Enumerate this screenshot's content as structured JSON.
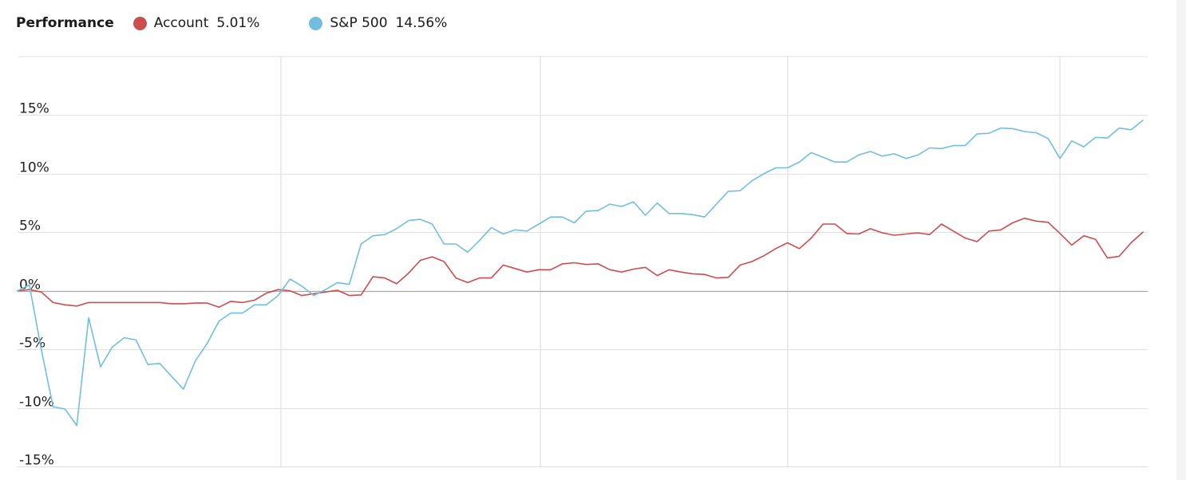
{
  "legend": {
    "title": "Performance",
    "series": [
      {
        "name": "Account",
        "value": "5.01%",
        "color": "#cc4d4f"
      },
      {
        "name": "S&P 500",
        "value": "14.56%",
        "color": "#72bedf"
      }
    ]
  },
  "chart_data": {
    "type": "line",
    "title": "Performance",
    "xlabel": "",
    "ylabel": "",
    "yticks": [
      -15,
      -10,
      -5,
      0,
      5,
      10,
      15
    ],
    "ytick_labels": [
      "-15%",
      "-10%",
      "-5%",
      "0%",
      "5%",
      "10%",
      "15%"
    ],
    "ylim": [
      -15,
      20
    ],
    "x_count": 96,
    "grid": true,
    "legend_position": "top-left",
    "series": [
      {
        "name": "Account",
        "color": "#cc4d4f",
        "values": [
          0,
          0.1,
          -0.1,
          -1.0,
          -1.2,
          -1.3,
          -1.0,
          -1.0,
          -1.0,
          -1.0,
          -1.0,
          -1.0,
          -1.0,
          -1.1,
          -1.1,
          -1.05,
          -1.05,
          -1.4,
          -0.9,
          -1.0,
          -0.8,
          -0.2,
          0.1,
          0,
          -0.4,
          -0.25,
          -0.1,
          0.05,
          -0.4,
          -0.35,
          1.2,
          1.1,
          0.6,
          1.5,
          2.6,
          2.9,
          2.5,
          1.1,
          0.7,
          1.1,
          1.1,
          2.2,
          1.9,
          1.6,
          1.8,
          1.8,
          2.3,
          2.4,
          2.25,
          2.3,
          1.8,
          1.6,
          1.85,
          2.0,
          1.3,
          1.8,
          1.6,
          1.45,
          1.4,
          1.1,
          1.15,
          2.2,
          2.5,
          3.0,
          3.6,
          4.1,
          3.6,
          4.5,
          5.7,
          5.7,
          4.9,
          4.85,
          5.3,
          4.95,
          4.75,
          4.85,
          4.95,
          4.8,
          5.7,
          5.1,
          4.5,
          4.2,
          5.1,
          5.2,
          5.8,
          6.2,
          5.95,
          5.85,
          4.9,
          3.9,
          4.7,
          4.4,
          2.8,
          2.95,
          4.1,
          5.01
        ]
      },
      {
        "name": "S&P 500",
        "color": "#72bedf",
        "values": [
          0,
          0.5,
          -5.0,
          -9.9,
          -10.1,
          -11.5,
          -2.3,
          -6.5,
          -4.8,
          -4.0,
          -4.2,
          -6.3,
          -6.2,
          -7.3,
          -8.4,
          -6.0,
          -4.5,
          -2.6,
          -1.9,
          -1.9,
          -1.2,
          -1.2,
          -0.4,
          1.0,
          0.4,
          -0.4,
          0.1,
          0.7,
          0.55,
          4.0,
          4.7,
          4.8,
          5.3,
          6.0,
          6.1,
          5.7,
          4.0,
          4.0,
          3.3,
          4.3,
          5.4,
          4.85,
          5.2,
          5.1,
          5.7,
          6.3,
          6.3,
          5.8,
          6.8,
          6.85,
          7.4,
          7.2,
          7.6,
          6.45,
          7.5,
          6.6,
          6.6,
          6.5,
          6.3,
          7.4,
          8.5,
          8.55,
          9.4,
          10.0,
          10.5,
          10.5,
          11.0,
          11.8,
          11.4,
          11.0,
          11.0,
          11.6,
          11.9,
          11.5,
          11.7,
          11.3,
          11.6,
          12.2,
          12.15,
          12.4,
          12.4,
          13.4,
          13.45,
          13.9,
          13.85,
          13.6,
          13.5,
          13.0,
          11.3,
          12.8,
          12.3,
          13.1,
          13.05,
          13.9,
          13.75,
          14.56
        ]
      }
    ]
  }
}
